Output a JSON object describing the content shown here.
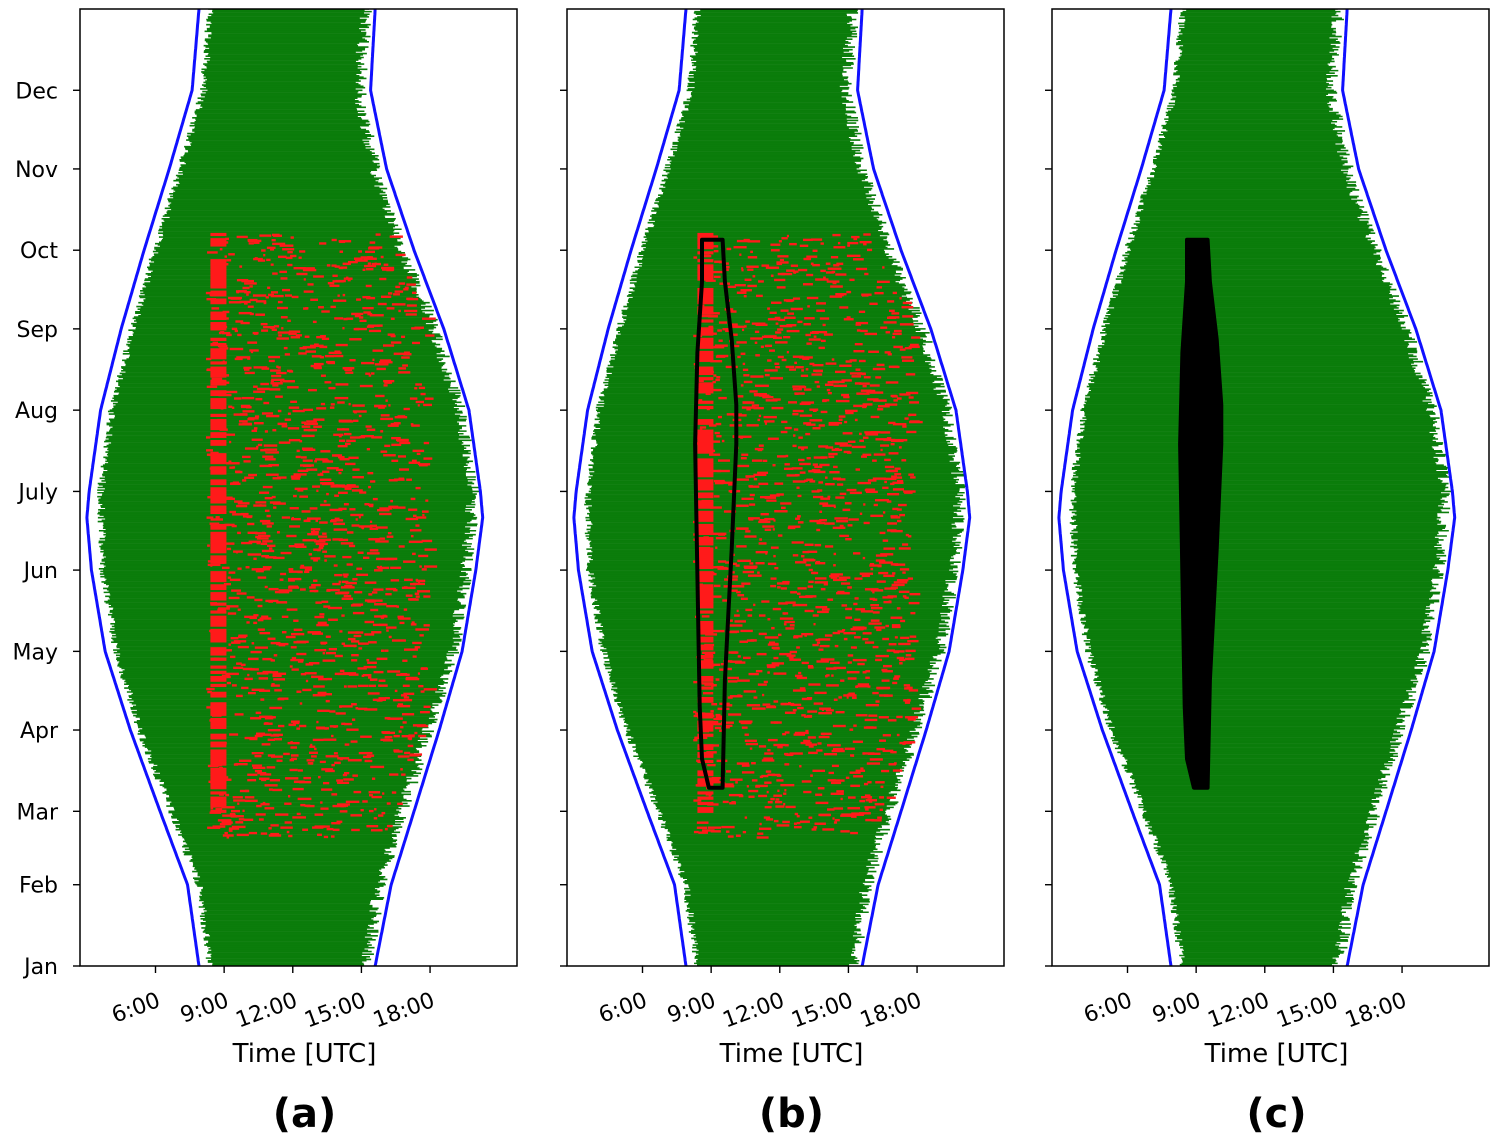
{
  "figure": {
    "panels": [
      "(a)",
      "(b)",
      "(c)"
    ],
    "xlabel": "Time [UTC]",
    "colors": {
      "daylight_data": "#0b7d0b",
      "flagged_data": "#ff1a1a",
      "sun_boundary": "#1010ff",
      "mask_region": "#000000",
      "axes_frame": "#000000"
    }
  },
  "chart_data": [
    {
      "panel": "(a)",
      "type": "scatter",
      "xlabel": "Time [UTC]",
      "ylabel": "",
      "x_ticks": [
        "6:00",
        "9:00",
        "12:00",
        "15:00",
        "18:00"
      ],
      "x_tick_values": [
        6,
        9,
        12,
        15,
        18
      ],
      "y_ticks": [
        "Jan",
        "Feb",
        "Mar",
        "Apr",
        "May",
        "Jun",
        "July",
        "Aug",
        "Sep",
        "Oct",
        "Nov",
        "Dec"
      ],
      "y_tick_values": [
        1,
        32,
        60,
        91,
        121,
        152,
        182,
        213,
        244,
        274,
        305,
        335
      ],
      "xlim": [
        2.7,
        21.8
      ],
      "ylim": [
        1,
        366
      ],
      "grid": false,
      "sun_boundary": {
        "doy": [
          1,
          32,
          60,
          91,
          121,
          152,
          172,
          182,
          213,
          244,
          274,
          305,
          335,
          366
        ],
        "sunrise": [
          7.9,
          7.4,
          6.2,
          4.9,
          3.8,
          3.2,
          3.0,
          3.1,
          3.6,
          4.5,
          5.5,
          6.6,
          7.6,
          7.9
        ],
        "sunset": [
          15.6,
          16.3,
          17.3,
          18.4,
          19.4,
          20.0,
          20.3,
          20.2,
          19.7,
          18.6,
          17.3,
          16.1,
          15.4,
          15.6
        ]
      },
      "data_band": {
        "doy": [
          1,
          32,
          60,
          91,
          121,
          152,
          182,
          213,
          244,
          274,
          305,
          335,
          366
        ],
        "start": [
          8.4,
          7.9,
          6.7,
          5.3,
          4.3,
          3.7,
          3.6,
          4.1,
          5.0,
          6.0,
          7.1,
          8.1,
          8.4
        ],
        "end": [
          15.2,
          15.8,
          16.8,
          17.9,
          19.0,
          19.6,
          19.9,
          19.3,
          18.2,
          16.8,
          15.6,
          14.9,
          15.2
        ]
      },
      "flagged_points": {
        "doy_range": [
          50,
          280
        ],
        "time_range": [
          8.2,
          17.8
        ],
        "dense_column_time": [
          8.4,
          9.1
        ],
        "dense_column_doy": [
          60,
          280
        ]
      },
      "mask_polygon": null,
      "mask_filled": false
    },
    {
      "panel": "(b)",
      "type": "scatter",
      "xlabel": "Time [UTC]",
      "ylabel": "",
      "x_ticks": [
        "6:00",
        "9:00",
        "12:00",
        "15:00",
        "18:00"
      ],
      "x_tick_values": [
        6,
        9,
        12,
        15,
        18
      ],
      "y_ticks": [
        "Jan",
        "Feb",
        "Mar",
        "Apr",
        "May",
        "Jun",
        "July",
        "Aug",
        "Sep",
        "Oct",
        "Nov",
        "Dec"
      ],
      "y_tick_values": [
        1,
        32,
        60,
        91,
        121,
        152,
        182,
        213,
        244,
        274,
        305,
        335
      ],
      "xlim": [
        2.7,
        21.8
      ],
      "ylim": [
        1,
        366
      ],
      "grid": false,
      "sun_boundary": {
        "doy": [
          1,
          32,
          60,
          91,
          121,
          152,
          172,
          182,
          213,
          244,
          274,
          305,
          335,
          366
        ],
        "sunrise": [
          7.9,
          7.4,
          6.2,
          4.9,
          3.8,
          3.2,
          3.0,
          3.1,
          3.6,
          4.5,
          5.5,
          6.6,
          7.6,
          7.9
        ],
        "sunset": [
          15.6,
          16.3,
          17.3,
          18.4,
          19.4,
          20.0,
          20.3,
          20.2,
          19.7,
          18.6,
          17.3,
          16.1,
          15.4,
          15.6
        ]
      },
      "data_band": {
        "doy": [
          1,
          32,
          60,
          91,
          121,
          152,
          182,
          213,
          244,
          274,
          305,
          335,
          366
        ],
        "start": [
          8.4,
          7.9,
          6.7,
          5.3,
          4.3,
          3.7,
          3.6,
          4.1,
          5.0,
          6.0,
          7.1,
          8.1,
          8.4
        ],
        "end": [
          15.2,
          15.8,
          16.8,
          17.9,
          19.0,
          19.6,
          19.9,
          19.3,
          18.2,
          16.8,
          15.6,
          14.9,
          15.2
        ]
      },
      "flagged_points": {
        "doy_range": [
          50,
          280
        ],
        "time_range": [
          8.2,
          17.8
        ],
        "dense_column_time": [
          8.4,
          9.1
        ],
        "dense_column_doy": [
          60,
          280
        ]
      },
      "mask_polygon": [
        [
          8.9,
          69
        ],
        [
          9.5,
          69
        ],
        [
          9.6,
          110
        ],
        [
          9.9,
          160
        ],
        [
          10.1,
          200
        ],
        [
          10.1,
          215
        ],
        [
          9.9,
          240
        ],
        [
          9.6,
          262
        ],
        [
          9.5,
          278
        ],
        [
          8.6,
          278
        ],
        [
          8.6,
          262
        ],
        [
          8.4,
          235
        ],
        [
          8.3,
          200
        ],
        [
          8.4,
          150
        ],
        [
          8.5,
          100
        ],
        [
          8.6,
          80
        ],
        [
          8.9,
          69
        ]
      ],
      "mask_filled": false
    },
    {
      "panel": "(c)",
      "type": "scatter",
      "xlabel": "Time [UTC]",
      "ylabel": "",
      "x_ticks": [
        "6:00",
        "9:00",
        "12:00",
        "15:00",
        "18:00"
      ],
      "x_tick_values": [
        6,
        9,
        12,
        15,
        18
      ],
      "y_ticks": [
        "Jan",
        "Feb",
        "Mar",
        "Apr",
        "May",
        "Jun",
        "July",
        "Aug",
        "Sep",
        "Oct",
        "Nov",
        "Dec"
      ],
      "y_tick_values": [
        1,
        32,
        60,
        91,
        121,
        152,
        182,
        213,
        244,
        274,
        305,
        335
      ],
      "xlim": [
        2.7,
        21.8
      ],
      "ylim": [
        1,
        366
      ],
      "grid": false,
      "sun_boundary": {
        "doy": [
          1,
          32,
          60,
          91,
          121,
          152,
          172,
          182,
          213,
          244,
          274,
          305,
          335,
          366
        ],
        "sunrise": [
          7.9,
          7.4,
          6.2,
          4.9,
          3.8,
          3.2,
          3.0,
          3.1,
          3.6,
          4.5,
          5.5,
          6.6,
          7.6,
          7.9
        ],
        "sunset": [
          15.6,
          16.3,
          17.3,
          18.4,
          19.4,
          20.0,
          20.3,
          20.2,
          19.7,
          18.6,
          17.3,
          16.1,
          15.4,
          15.6
        ]
      },
      "data_band": {
        "doy": [
          1,
          32,
          60,
          91,
          121,
          152,
          182,
          213,
          244,
          274,
          305,
          335,
          366
        ],
        "start": [
          8.4,
          7.9,
          6.7,
          5.3,
          4.3,
          3.7,
          3.6,
          4.1,
          5.0,
          6.0,
          7.1,
          8.1,
          8.4
        ],
        "end": [
          15.2,
          15.8,
          16.8,
          17.9,
          19.0,
          19.6,
          19.9,
          19.3,
          18.2,
          16.8,
          15.6,
          14.9,
          15.2
        ]
      },
      "flagged_points": null,
      "mask_polygon": [
        [
          8.9,
          69
        ],
        [
          9.5,
          69
        ],
        [
          9.6,
          110
        ],
        [
          9.9,
          160
        ],
        [
          10.1,
          200
        ],
        [
          10.1,
          215
        ],
        [
          9.9,
          240
        ],
        [
          9.6,
          262
        ],
        [
          9.5,
          278
        ],
        [
          8.6,
          278
        ],
        [
          8.6,
          262
        ],
        [
          8.4,
          235
        ],
        [
          8.3,
          200
        ],
        [
          8.4,
          150
        ],
        [
          8.5,
          100
        ],
        [
          8.6,
          80
        ],
        [
          8.9,
          69
        ]
      ],
      "mask_filled": true
    }
  ]
}
